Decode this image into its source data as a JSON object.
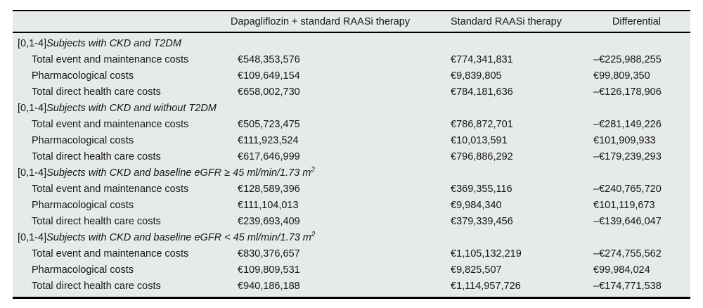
{
  "colors": {
    "table_background": "#e7eaea",
    "rule_color": "#000000",
    "text_color": "#161616"
  },
  "table": {
    "columns": {
      "treatment": "Dapagliflozin + standard RAASi therapy",
      "comparator": "Standard RAASi therapy",
      "differential": "Differential"
    },
    "sections": [
      {
        "prefix": "[0,1-4]",
        "title": "Subjects with CKD and T2DM",
        "title_sup": "",
        "rows": [
          {
            "label": "Total event and maintenance costs",
            "treatment": "€548,353,576",
            "comparator": "€774,341,831",
            "differential": "–€225,988,255"
          },
          {
            "label": "Pharmacological costs",
            "treatment": "€109,649,154",
            "comparator": "€9,839,805",
            "differential": "€99,809,350"
          },
          {
            "label": "Total direct health care costs",
            "treatment": "€658,002,730",
            "comparator": "€784,181,636",
            "differential": "–€126,178,906"
          }
        ]
      },
      {
        "prefix": "[0,1-4]",
        "title": "Subjects with CKD and without T2DM",
        "title_sup": "",
        "rows": [
          {
            "label": "Total event and maintenance costs",
            "treatment": "€505,723,475",
            "comparator": "€786,872,701",
            "differential": "–€281,149,226"
          },
          {
            "label": "Pharmacological costs",
            "treatment": "€111,923,524",
            "comparator": "€10,013,591",
            "differential": "€101,909,933"
          },
          {
            "label": "Total direct health care costs",
            "treatment": "€617,646,999",
            "comparator": "€796,886,292",
            "differential": "–€179,239,293"
          }
        ]
      },
      {
        "prefix": "[0,1-4]",
        "title": "Subjects with CKD and baseline eGFR ≥ 45 ml/min/1.73 m",
        "title_sup": "2",
        "rows": [
          {
            "label": "Total event and maintenance costs",
            "treatment": "€128,589,396",
            "comparator": "€369,355,116",
            "differential": "–€240,765,720"
          },
          {
            "label": "Pharmacological costs",
            "treatment": "€111,104,013",
            "comparator": "€9,984,340",
            "differential": "€101,119,673"
          },
          {
            "label": "Total direct health care costs",
            "treatment": "€239,693,409",
            "comparator": "€379,339,456",
            "differential": "–€139,646,047"
          }
        ]
      },
      {
        "prefix": "[0,1-4]",
        "title": "Subjects with CKD and baseline eGFR < 45 ml/min/1.73 m",
        "title_sup": "2",
        "rows": [
          {
            "label": "Total event and maintenance costs",
            "treatment": "€830,376,657",
            "comparator": "€1,105,132,219",
            "differential": "–€274,755,562"
          },
          {
            "label": "Pharmacological costs",
            "treatment": "€109,809,531",
            "comparator": "€9,825,507",
            "differential": "€99,984,024"
          },
          {
            "label": "Total direct health care costs",
            "treatment": "€940,186,188",
            "comparator": "€1,114,957,726",
            "differential": "–€174,771,538"
          }
        ]
      }
    ]
  }
}
